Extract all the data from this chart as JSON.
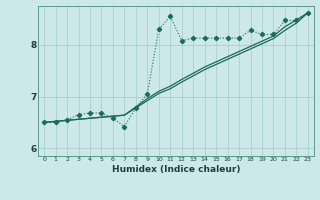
{
  "xlabel": "Humidex (Indice chaleur)",
  "bg_color": "#cce8e8",
  "grid_color": "#aacfcf",
  "line_color": "#1a6b5a",
  "xlim": [
    -0.5,
    23.5
  ],
  "ylim": [
    5.85,
    8.75
  ],
  "yticks": [
    6,
    7,
    8
  ],
  "xticks": [
    0,
    1,
    2,
    3,
    4,
    5,
    6,
    7,
    8,
    9,
    10,
    11,
    12,
    13,
    14,
    15,
    16,
    17,
    18,
    19,
    20,
    21,
    22,
    23
  ],
  "line_dotted_x": [
    0,
    1,
    2,
    3,
    4,
    5,
    6,
    7,
    8,
    9,
    10,
    11,
    12,
    13,
    14,
    15,
    16,
    17,
    18,
    19,
    20,
    21,
    22,
    23
  ],
  "line_dotted_y": [
    6.5,
    6.5,
    6.55,
    6.65,
    6.68,
    6.68,
    6.58,
    6.42,
    6.78,
    7.05,
    8.3,
    8.55,
    8.08,
    8.13,
    8.13,
    8.13,
    8.13,
    8.13,
    8.28,
    8.2,
    8.2,
    8.47,
    8.47,
    8.62
  ],
  "line_solid1_x": [
    0,
    1,
    2,
    3,
    4,
    5,
    6,
    7,
    8,
    9,
    10,
    11,
    12,
    13,
    14,
    15,
    16,
    17,
    18,
    19,
    20,
    21,
    22,
    23
  ],
  "line_solid1_y": [
    6.5,
    6.52,
    6.54,
    6.56,
    6.58,
    6.6,
    6.62,
    6.64,
    6.78,
    6.92,
    7.06,
    7.15,
    7.28,
    7.4,
    7.52,
    7.62,
    7.72,
    7.82,
    7.92,
    8.02,
    8.12,
    8.28,
    8.42,
    8.62
  ],
  "line_solid2_x": [
    0,
    1,
    2,
    3,
    4,
    5,
    6,
    7,
    8,
    9,
    10,
    11,
    12,
    13,
    14,
    15,
    16,
    17,
    18,
    19,
    20,
    21,
    22,
    23
  ],
  "line_solid2_y": [
    6.5,
    6.52,
    6.54,
    6.56,
    6.58,
    6.6,
    6.62,
    6.64,
    6.8,
    6.96,
    7.1,
    7.2,
    7.33,
    7.45,
    7.57,
    7.67,
    7.77,
    7.87,
    7.97,
    8.07,
    8.17,
    8.35,
    8.48,
    8.62
  ]
}
